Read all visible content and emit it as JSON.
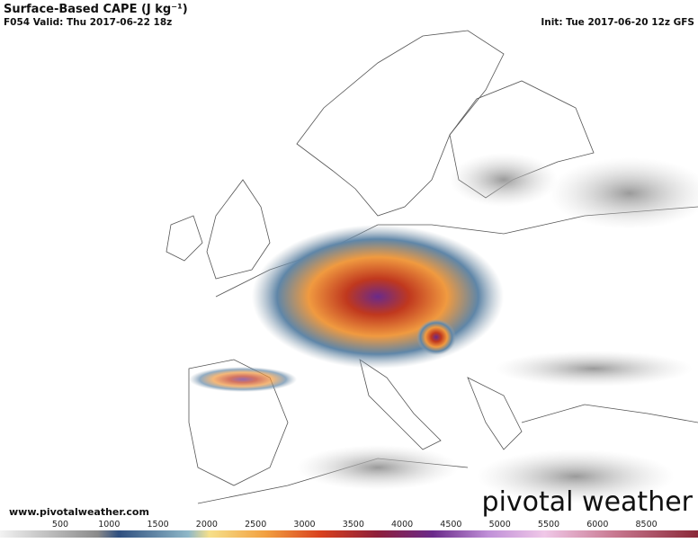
{
  "header": {
    "title": "Surface-Based CAPE (J kg⁻¹)",
    "valid": "F054 Valid: Thu 2017-06-22 18z",
    "init": "Init: Tue 2017-06-20 12z GFS"
  },
  "footer": {
    "website": "www.pivotalweather.com",
    "brand": "pivotal weather"
  },
  "colorbar": {
    "ticks": [
      500,
      1000,
      1500,
      2000,
      2500,
      3000,
      3500,
      4000,
      4500,
      5000,
      5500,
      6000,
      8500
    ]
  }
}
